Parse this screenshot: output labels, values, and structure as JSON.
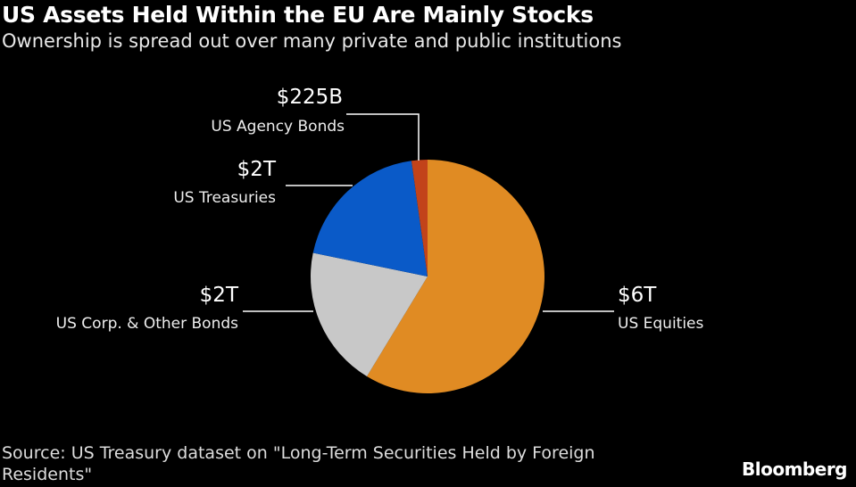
{
  "title": "US Assets Held Within the EU Are Mainly Stocks",
  "subtitle": "Ownership is spread out over many private and public institutions",
  "source": "Source: US Treasury dataset on \"Long-Term Securities Held by Foreign Residents\"",
  "logo": "Bloomberg",
  "chart_data": {
    "type": "pie",
    "start": "top, clockwise",
    "slices": [
      {
        "label": "US Equities",
        "value_label": "$6T",
        "value": 6000,
        "color": "#E08B23"
      },
      {
        "label": "US Corp. & Other Bonds",
        "value_label": "$2T",
        "value": 2000,
        "color": "#C8C8C8"
      },
      {
        "label": "US Treasuries",
        "value_label": "$2T",
        "value": 2000,
        "color": "#0A5AC8"
      },
      {
        "label": "US Agency Bonds",
        "value_label": "$225B",
        "value": 225,
        "color": "#C2431A"
      }
    ],
    "unit": "USD billions"
  }
}
